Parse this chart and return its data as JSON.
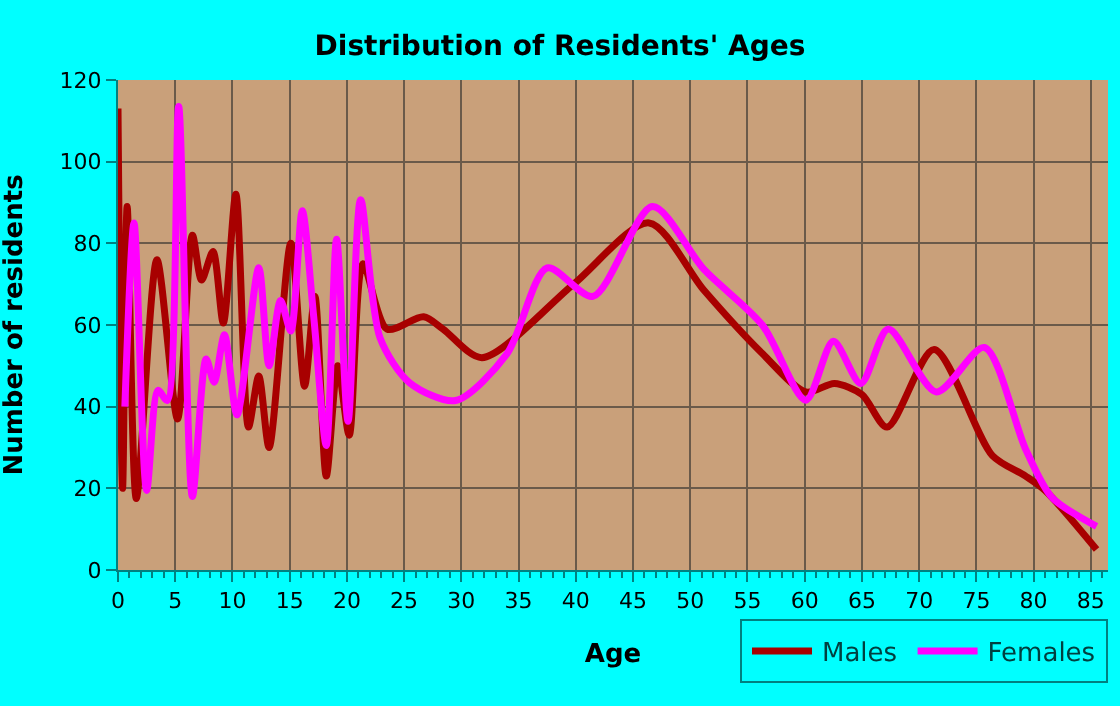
{
  "chart_data": {
    "type": "line",
    "title": "Distribution of Residents' Ages",
    "xlabel": "Age",
    "ylabel": "Number of residents",
    "xlim": [
      0,
      86.5
    ],
    "xticks": [
      0,
      5,
      10,
      15,
      20,
      25,
      30,
      35,
      40,
      45,
      50,
      55,
      60,
      65,
      70,
      75,
      80,
      85
    ],
    "ylim": [
      0,
      120
    ],
    "yticks": [
      0,
      20,
      40,
      60,
      80,
      100,
      120
    ],
    "grid": true,
    "legend": "bottom right",
    "marker": "none",
    "line_style": "solid",
    "series": [
      {
        "name": "Males",
        "color": "#a80000",
        "x": [
          0,
          0.4,
          0.8,
          1.6,
          3.4,
          5.2,
          6.5,
          7.3,
          8.3,
          9.2,
          10.3,
          11.4,
          12.3,
          13.2,
          15.1,
          16.3,
          17.2,
          18.2,
          19.2,
          20.2,
          21.4,
          23.5,
          26.7,
          28.4,
          31.8,
          39.8,
          46.4,
          51.2,
          56.3,
          60.1,
          62.6,
          65,
          67.2,
          71.3,
          76.4,
          79.3,
          81,
          85.5
        ],
        "values": [
          113,
          20,
          89,
          17.5,
          76,
          37,
          82,
          71,
          78,
          60.5,
          92,
          35,
          47.5,
          30,
          80,
          45,
          67,
          23,
          50,
          33,
          75,
          59,
          62,
          59,
          52,
          70,
          85,
          68.5,
          53,
          43.6,
          45.7,
          43,
          35,
          54,
          28,
          23,
          19.5,
          5
        ]
      },
      {
        "name": "Females",
        "color": "#ff00ff",
        "x": [
          0.6,
          1.4,
          2.5,
          3.5,
          4.3,
          5.3,
          6.5,
          7.7,
          8.4,
          9.3,
          10.4,
          12.3,
          13.2,
          14.2,
          15.1,
          16.1,
          17.1,
          18.2,
          19.1,
          20.1,
          21.2,
          22.9,
          25.5,
          29.5,
          34,
          37.5,
          41.5,
          46.7,
          51.2,
          56.3,
          60.1,
          62.5,
          64.9,
          67.3,
          71.5,
          75.7,
          79.3,
          81.6,
          85.5
        ],
        "values": [
          40,
          85,
          19.5,
          44,
          41.5,
          113.5,
          18,
          51.7,
          46,
          57.6,
          38,
          74,
          50,
          66,
          58.5,
          88,
          62,
          30.5,
          81,
          36.4,
          90.7,
          56.8,
          45.8,
          41.5,
          53,
          74,
          67,
          89,
          73.6,
          60,
          41.6,
          56,
          45.7,
          59,
          43.6,
          54.5,
          29.6,
          17.8,
          10.7
        ]
      }
    ]
  }
}
